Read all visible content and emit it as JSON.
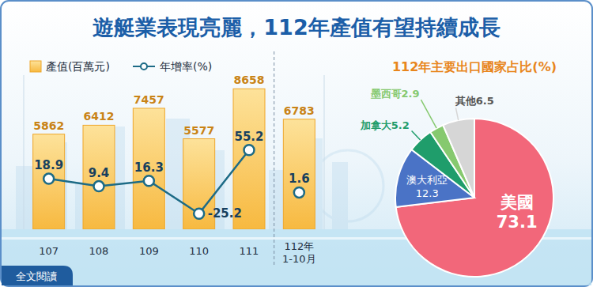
{
  "title": "遊艇業表現亮麗，112年產值有望持續成長",
  "link": "全文閱讀",
  "chart_data": [
    {
      "type": "bar",
      "categories": [
        "107",
        "108",
        "109",
        "110",
        "111",
        "112年\n1-10月"
      ],
      "series": [
        {
          "name": "產值(百萬元)",
          "type": "bar",
          "color": "#f7b940",
          "values": [
            5862,
            6412,
            7457,
            5577,
            8658,
            6783
          ]
        },
        {
          "name": "年增率(%)",
          "type": "line",
          "axis": "y2",
          "color": "#1d6b86",
          "marker": "circle",
          "values": [
            18.9,
            9.4,
            16.3,
            -25.2,
            55.2,
            1.6
          ]
        }
      ],
      "ylim": [
        0,
        9500
      ],
      "y2lim": [
        -45,
        150
      ],
      "tick_labels": "x",
      "data_labels": true,
      "legend": "top-left"
    },
    {
      "type": "pie",
      "title": "112年主要出口國家占比(%)",
      "categories": [
        "美國",
        "澳大利亞",
        "加拿大",
        "墨西哥",
        "其他"
      ],
      "values": [
        73.1,
        12.3,
        5.2,
        2.9,
        6.5
      ],
      "colors": [
        "#f2677a",
        "#4a73c6",
        "#1f9d6b",
        "#86c96f",
        "#d6d6d6"
      ],
      "data_labels": true
    }
  ]
}
